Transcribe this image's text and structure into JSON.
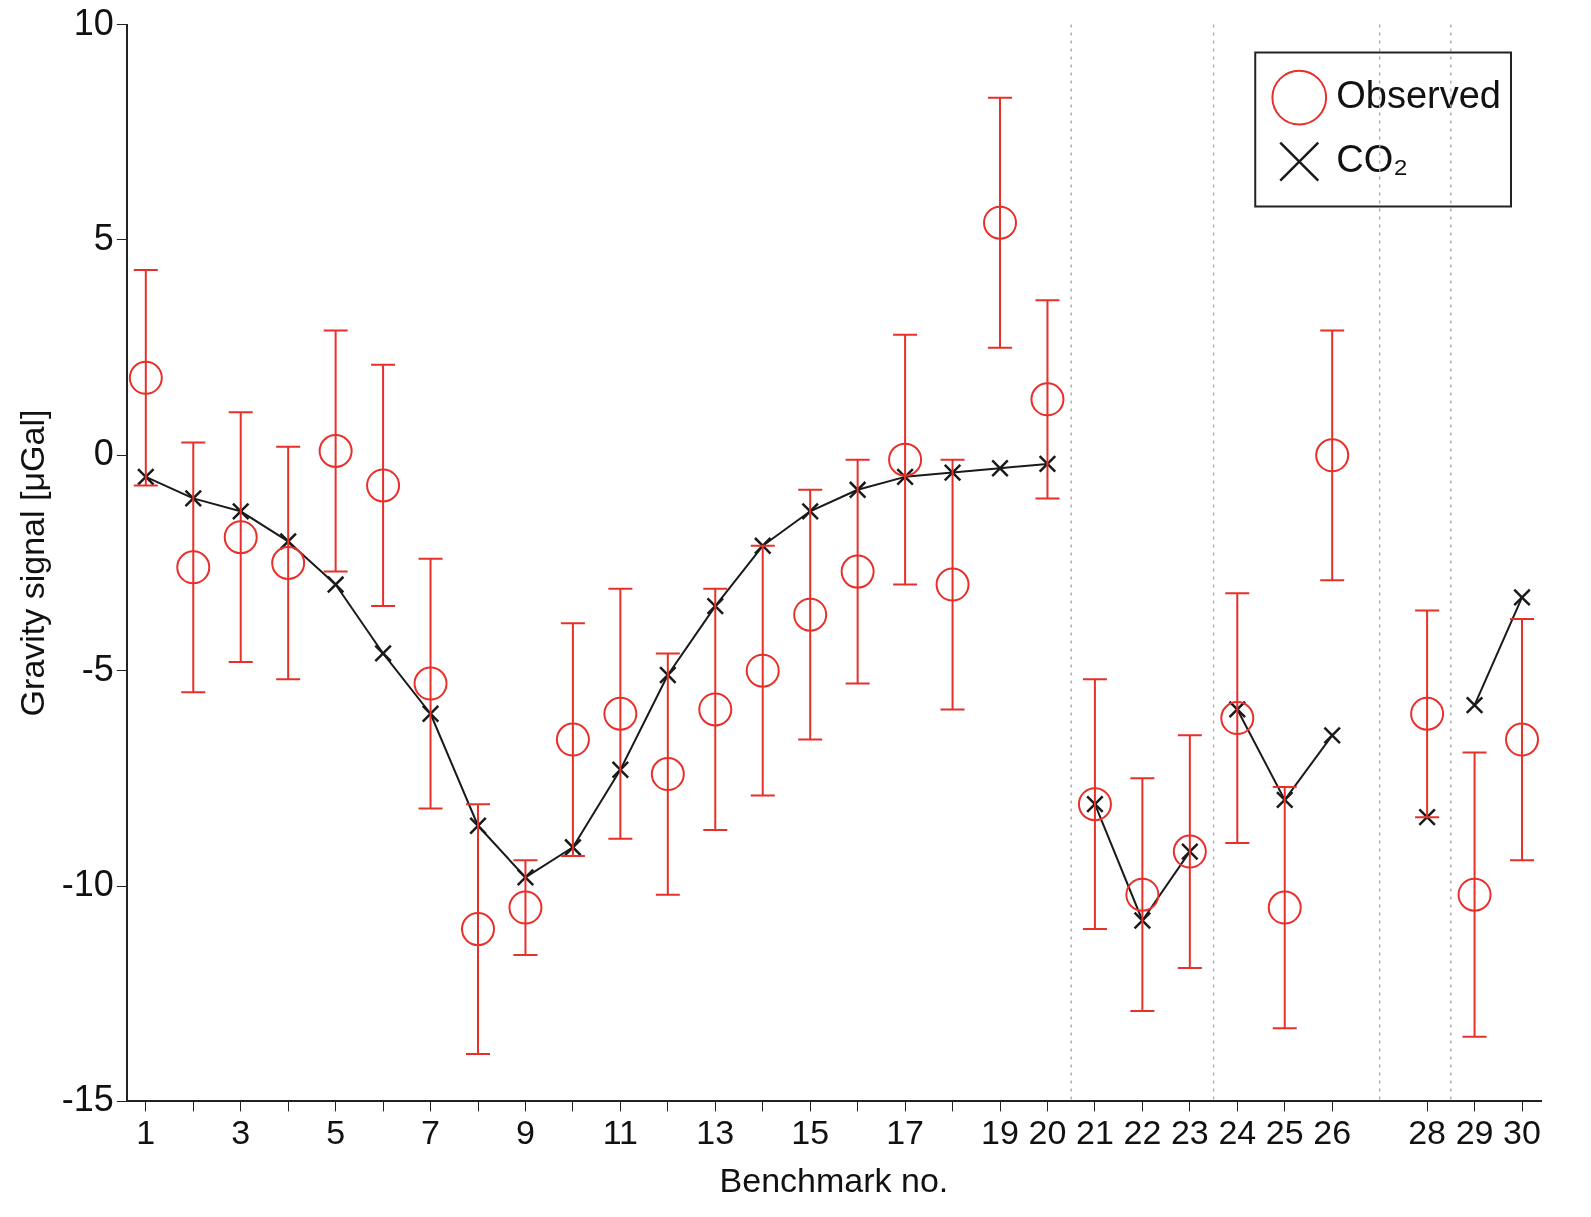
{
  "chart_data": {
    "type": "scatter",
    "xlabel": "Benchmark no.",
    "ylabel": "Gravity signal [μGal]",
    "xlim": [
      0.6,
      30.4
    ],
    "ylim": [
      -15,
      10
    ],
    "yticks": [
      -15,
      -10,
      -5,
      0,
      5,
      10
    ],
    "xticks": [
      1,
      {
        "value": 2,
        "label": null
      },
      3,
      {
        "value": 4,
        "label": null
      },
      5,
      {
        "value": 6,
        "label": null
      },
      7,
      {
        "value": 8,
        "label": null
      },
      9,
      {
        "value": 10,
        "label": null
      },
      11,
      {
        "value": 12,
        "label": null
      },
      13,
      {
        "value": 14,
        "label": null
      },
      15,
      {
        "value": 16,
        "label": null
      },
      17,
      {
        "value": 18,
        "label": null
      },
      19,
      20,
      21,
      22,
      23,
      24,
      25,
      26,
      28,
      29,
      30
    ],
    "series": [
      {
        "name": "Observed",
        "color": "#e8302a",
        "marker": "circle",
        "x": [
          1,
          2,
          3,
          4,
          5,
          6,
          7,
          8,
          9,
          10,
          11,
          12,
          13,
          14,
          15,
          16,
          17,
          18,
          19,
          20,
          21,
          22,
          23,
          24,
          25,
          26,
          28,
          29,
          30
        ],
        "values": [
          1.8,
          -2.6,
          -1.9,
          -2.5,
          0.1,
          -0.7,
          -5.3,
          -11.0,
          -10.5,
          -6.6,
          -6.0,
          -7.4,
          -5.9,
          -5.0,
          -3.7,
          -2.7,
          -0.1,
          -3.0,
          5.4,
          1.3,
          -8.1,
          -10.2,
          -9.2,
          -6.1,
          -10.5,
          0.0,
          -6.0,
          -10.2,
          -6.6
        ],
        "errors": [
          2.5,
          2.9,
          2.9,
          2.7,
          2.8,
          2.8,
          2.9,
          2.9,
          1.1,
          2.7,
          2.9,
          2.8,
          2.8,
          2.9,
          2.9,
          2.6,
          2.9,
          2.9,
          2.9,
          2.3,
          2.9,
          2.7,
          2.7,
          2.9,
          2.8,
          2.9,
          2.4,
          3.3,
          2.8
        ]
      },
      {
        "name": "CO₂",
        "type": "line",
        "color": "#1a1a1a",
        "marker": "cross",
        "line_style": "solid",
        "x": [
          1,
          2,
          3,
          4,
          5,
          6,
          7,
          8,
          9,
          10,
          11,
          12,
          13,
          14,
          15,
          16,
          17,
          18,
          19,
          20,
          20.5,
          21,
          22,
          23,
          23.5,
          24,
          25,
          26,
          27,
          28,
          28.5,
          29,
          30
        ],
        "values": [
          -0.5,
          -1.0,
          -1.3,
          -2.0,
          -3.0,
          -4.6,
          -6.0,
          -8.6,
          -9.8,
          -9.1,
          -7.3,
          -5.1,
          -3.5,
          -2.1,
          -1.3,
          -0.8,
          -0.5,
          -0.4,
          -0.3,
          -0.2,
          null,
          -8.1,
          -10.8,
          -9.2,
          null,
          -5.9,
          -8.0,
          -6.5,
          null,
          -8.4,
          null,
          -5.8,
          -3.3
        ]
      }
    ],
    "ref_lines": [
      {
        "axis": "x",
        "value": 20.5,
        "color": "#b0b0b0",
        "line_style": "dotted"
      },
      {
        "axis": "x",
        "value": 23.5,
        "color": "#b0b0b0",
        "line_style": "dotted"
      },
      {
        "axis": "x",
        "value": 27,
        "color": "#b0b0b0",
        "line_style": "dotted"
      },
      {
        "axis": "x",
        "value": 28.5,
        "color": "#b0b0b0",
        "line_style": "dotted"
      }
    ],
    "grid": false,
    "legend": "top right"
  }
}
